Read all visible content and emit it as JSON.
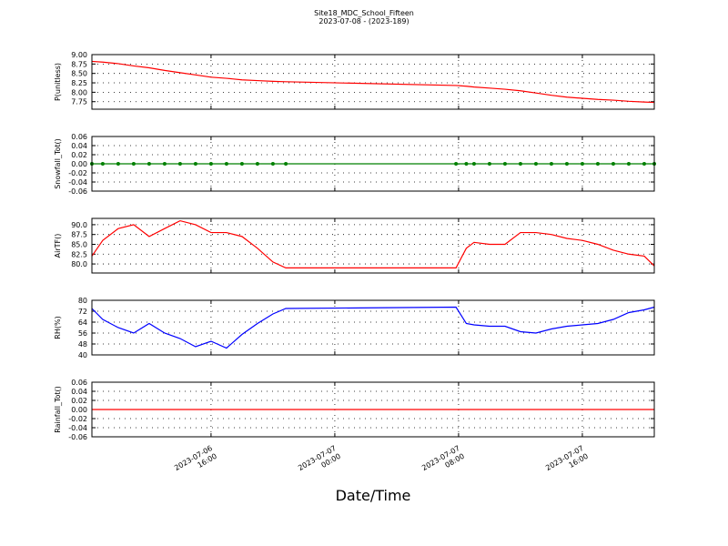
{
  "title": "Site18_MDC_School_Fifteen",
  "subtitle": "2023-07-08 - (2023-189)",
  "xlabel": "Date/Time",
  "x": [
    "2023-07-06 08:18",
    "2023-07-06 09:00",
    "2023-07-06 10:00",
    "2023-07-06 11:00",
    "2023-07-06 12:00",
    "2023-07-06 13:00",
    "2023-07-06 14:00",
    "2023-07-06 15:00",
    "2023-07-06 16:00",
    "2023-07-06 17:00",
    "2023-07-06 18:00",
    "2023-07-06 19:00",
    "2023-07-06 20:00",
    "2023-07-06 20:50",
    "2023-07-07 07:50",
    "2023-07-07 08:30",
    "2023-07-07 09:00",
    "2023-07-07 10:00",
    "2023-07-07 11:00",
    "2023-07-07 12:00",
    "2023-07-07 13:00",
    "2023-07-07 14:00",
    "2023-07-07 15:00",
    "2023-07-07 16:00",
    "2023-07-07 17:00",
    "2023-07-07 18:00",
    "2023-07-07 19:00",
    "2023-07-07 20:00",
    "2023-07-07 20:39"
  ],
  "xlim": [
    "2023-07-06 08:18",
    "2023-07-07 20:39"
  ],
  "xticks": [
    "2023-07-06 16:00",
    "2023-07-07 00:00",
    "2023-07-07 08:00",
    "2023-07-07 16:00"
  ],
  "chart_data": [
    {
      "type": "line",
      "ylabel": "P(unitless)",
      "color": "#ff0000",
      "grid": true,
      "ylim": [
        7.55,
        9.0
      ],
      "yticks": [
        {
          "value": 7.75,
          "label": "7.75"
        },
        {
          "value": 8,
          "label": "8.00"
        },
        {
          "value": 8.25,
          "label": "8.25"
        },
        {
          "value": 8.5,
          "label": "8.50"
        },
        {
          "value": 8.75,
          "label": "8.75"
        },
        {
          "value": 9,
          "label": "9.00"
        }
      ],
      "values": [
        8.82,
        8.8,
        8.76,
        8.7,
        8.65,
        8.58,
        8.52,
        8.46,
        8.4,
        8.37,
        8.33,
        8.31,
        8.29,
        8.28,
        8.18,
        8.16,
        8.14,
        8.11,
        8.08,
        8.04,
        7.98,
        7.92,
        7.87,
        7.84,
        7.81,
        7.79,
        7.76,
        7.74,
        7.73
      ]
    },
    {
      "type": "line",
      "ylabel": "Snowfall_Tot()",
      "color": "#008000",
      "markers": true,
      "grid": true,
      "ylim": [
        -0.06,
        0.06
      ],
      "yticks": [
        -0.06,
        -0.04,
        -0.02,
        {
          "value": 0,
          "label": "0.00"
        },
        0.02,
        0.04,
        0.06
      ],
      "values": [
        0,
        0,
        0,
        0,
        0,
        0,
        0,
        0,
        0,
        0,
        0,
        0,
        0,
        0,
        0,
        0,
        0,
        0,
        0,
        0,
        0,
        0,
        0,
        0,
        0,
        0,
        0,
        0,
        0
      ]
    },
    {
      "type": "line",
      "ylabel": "AirTF()",
      "color": "#ff0000",
      "grid": true,
      "ylim": [
        77.7,
        91.6
      ],
      "yticks": [
        {
          "value": 80,
          "label": "80.0"
        },
        82.5,
        {
          "value": 85,
          "label": "85.0"
        },
        87.5,
        {
          "value": 90,
          "label": "90.0"
        }
      ],
      "values": [
        82,
        86,
        89,
        90,
        87,
        89,
        91,
        90,
        88,
        88,
        87,
        84,
        80.5,
        79,
        79,
        84,
        85.5,
        85,
        85,
        88,
        88,
        87.5,
        86.5,
        86,
        85,
        83.5,
        82.5,
        82,
        79.5
      ]
    },
    {
      "type": "line",
      "ylabel": "RH(%)",
      "color": "#0000ff",
      "grid": true,
      "ylim": [
        40,
        80
      ],
      "yticks": [
        40,
        48,
        56,
        64,
        72,
        80
      ],
      "values": [
        74,
        66,
        60,
        56,
        63,
        56,
        52,
        46,
        50,
        45,
        55,
        63,
        70,
        74,
        75,
        63,
        62,
        61,
        61,
        57,
        56,
        59,
        61,
        62,
        63,
        66,
        71,
        73,
        75
      ]
    },
    {
      "type": "line",
      "ylabel": "Rainfall_Tot()",
      "color": "#ff0000",
      "grid": true,
      "ylim": [
        -0.06,
        0.06
      ],
      "yticks": [
        -0.06,
        -0.04,
        -0.02,
        {
          "value": 0,
          "label": "0.00"
        },
        0.02,
        0.04,
        0.06
      ],
      "values": [
        0,
        0,
        0,
        0,
        0,
        0,
        0,
        0,
        0,
        0,
        0,
        0,
        0,
        0,
        0,
        0,
        0,
        0,
        0,
        0,
        0,
        0,
        0,
        0,
        0,
        0,
        0,
        0,
        0
      ]
    }
  ]
}
